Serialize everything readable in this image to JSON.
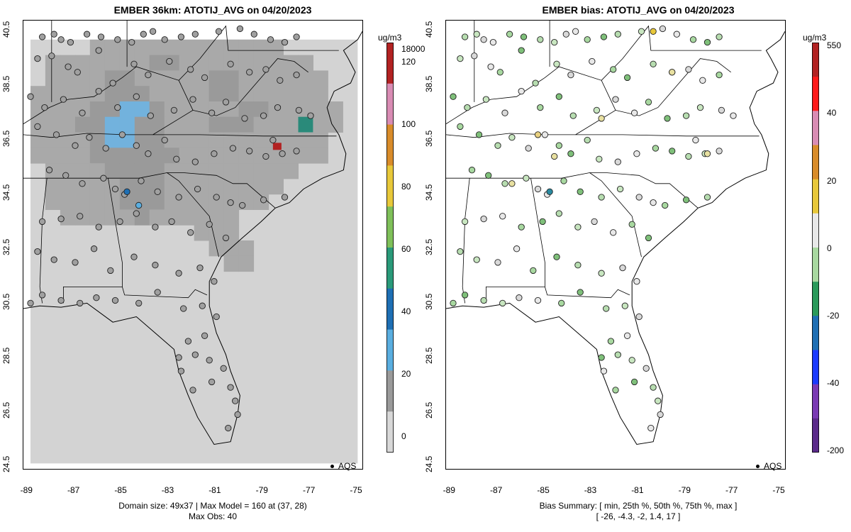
{
  "left_panel": {
    "title": "EMBER 36km: ATOTIJ_AVG on 04/20/2023",
    "footer_line1": "Domain size: 49x37 | Max Model = 160 at (37, 28)",
    "footer_line2": "Max Obs: 40",
    "colorbar": {
      "unit": "ug/m3",
      "labels": [
        "18000",
        "120",
        "100",
        "80",
        "60",
        "40",
        "20",
        "0"
      ],
      "colors": [
        "#b22222",
        "#d98cb4",
        "#d98c2a",
        "#e8c83a",
        "#7fc05a",
        "#2a9a7a",
        "#1e6fb4",
        "#5aaee0",
        "#9a9a9a",
        "#d8d8d8"
      ]
    },
    "legend_label": "AQS"
  },
  "right_panel": {
    "title": "EMBER bias: ATOTIJ_AVG on 04/20/2023",
    "footer_line1": "Bias Summary: [ min, 25th %, 50th %, 75th %, max ]",
    "footer_line2": "[ -26,   -4.3,   -2,   1.4,   17 ]",
    "colorbar": {
      "unit": "ug/m3",
      "labels": [
        "550",
        "40",
        "20",
        "0",
        "-20",
        "-40",
        "-200"
      ],
      "colors": [
        "#b22222",
        "#ff1a1a",
        "#d98cb4",
        "#d98c2a",
        "#e8c83a",
        "#e8e8e8",
        "#a8d8a0",
        "#2a9a5a",
        "#1e6fb4",
        "#1a3aff",
        "#7a3ab4",
        "#5a2a8a"
      ]
    },
    "legend_label": "AQS"
  },
  "axes": {
    "x_ticks": [
      "-89",
      "-87",
      "-85",
      "-83",
      "-81",
      "-79",
      "-77",
      "-75"
    ],
    "y_ticks": [
      "24.5",
      "26.5",
      "28.5",
      "30.5",
      "32.5",
      "34.5",
      "36.5",
      "38.5",
      "40.5"
    ],
    "lon_range": [
      -89.2,
      -74.8
    ],
    "lat_range": [
      24.3,
      40.8
    ]
  },
  "stations": [
    [
      -88.4,
      40.2
    ],
    [
      -87.9,
      40.3
    ],
    [
      -87.6,
      40.1
    ],
    [
      -87.2,
      40.0
    ],
    [
      -86.5,
      40.3
    ],
    [
      -85.9,
      40.2
    ],
    [
      -85.2,
      40.1
    ],
    [
      -84.6,
      40.0
    ],
    [
      -84.1,
      40.3
    ],
    [
      -83.7,
      40.4
    ],
    [
      -83.2,
      40.1
    ],
    [
      -82.5,
      40.2
    ],
    [
      -81.9,
      40.3
    ],
    [
      -80.9,
      40.4
    ],
    [
      -80.0,
      40.5
    ],
    [
      -79.4,
      40.3
    ],
    [
      -78.7,
      40.1
    ],
    [
      -78.1,
      40.0
    ],
    [
      -77.6,
      40.2
    ],
    [
      -88.6,
      39.4
    ],
    [
      -88.0,
      39.5
    ],
    [
      -87.3,
      39.1
    ],
    [
      -86.9,
      38.9
    ],
    [
      -86.0,
      39.7
    ],
    [
      -85.4,
      38.5
    ],
    [
      -84.5,
      39.2
    ],
    [
      -83.9,
      38.8
    ],
    [
      -83.0,
      39.3
    ],
    [
      -82.1,
      39.0
    ],
    [
      -81.5,
      38.7
    ],
    [
      -80.4,
      39.2
    ],
    [
      -79.6,
      38.9
    ],
    [
      -78.9,
      39.0
    ],
    [
      -78.3,
      38.6
    ],
    [
      -77.6,
      38.8
    ],
    [
      -88.9,
      38.0
    ],
    [
      -88.3,
      37.6
    ],
    [
      -87.5,
      37.9
    ],
    [
      -86.7,
      37.4
    ],
    [
      -86.0,
      38.2
    ],
    [
      -85.2,
      37.6
    ],
    [
      -84.4,
      38.0
    ],
    [
      -83.8,
      37.3
    ],
    [
      -82.8,
      37.5
    ],
    [
      -82.0,
      37.9
    ],
    [
      -81.2,
      37.4
    ],
    [
      -80.6,
      37.8
    ],
    [
      -79.8,
      37.2
    ],
    [
      -79.0,
      37.3
    ],
    [
      -78.4,
      37.6
    ],
    [
      -77.5,
      37.5
    ],
    [
      -77.0,
      37.3
    ],
    [
      -88.6,
      36.9
    ],
    [
      -87.8,
      36.6
    ],
    [
      -87.0,
      36.2
    ],
    [
      -86.4,
      36.5
    ],
    [
      -85.7,
      36.1
    ],
    [
      -85.0,
      36.6
    ],
    [
      -84.4,
      36.2
    ],
    [
      -83.9,
      35.9
    ],
    [
      -83.2,
      36.4
    ],
    [
      -82.7,
      35.7
    ],
    [
      -81.9,
      35.6
    ],
    [
      -81.1,
      35.9
    ],
    [
      -80.3,
      36.1
    ],
    [
      -79.6,
      36.0
    ],
    [
      -78.9,
      35.8
    ],
    [
      -78.2,
      35.9
    ],
    [
      -77.6,
      36.0
    ],
    [
      -78.6,
      36.4
    ],
    [
      -88.1,
      35.3
    ],
    [
      -87.4,
      35.1
    ],
    [
      -86.7,
      34.8
    ],
    [
      -85.8,
      35.0
    ],
    [
      -85.3,
      34.6
    ],
    [
      -84.9,
      34.4
    ],
    [
      -84.2,
      34.9
    ],
    [
      -83.5,
      34.5
    ],
    [
      -82.6,
      34.3
    ],
    [
      -81.8,
      34.6
    ],
    [
      -81.0,
      34.3
    ],
    [
      -80.4,
      34.1
    ],
    [
      -79.9,
      34.0
    ],
    [
      -79.0,
      34.2
    ],
    [
      -78.1,
      34.3
    ],
    [
      -88.4,
      33.4
    ],
    [
      -87.6,
      33.5
    ],
    [
      -86.8,
      33.6
    ],
    [
      -86.0,
      33.2
    ],
    [
      -85.1,
      33.4
    ],
    [
      -84.4,
      33.7
    ],
    [
      -83.6,
      33.2
    ],
    [
      -82.9,
      33.4
    ],
    [
      -82.1,
      33.0
    ],
    [
      -81.3,
      33.3
    ],
    [
      -80.6,
      32.8
    ],
    [
      -88.6,
      32.3
    ],
    [
      -87.9,
      32.0
    ],
    [
      -87.0,
      31.9
    ],
    [
      -86.2,
      32.4
    ],
    [
      -85.5,
      31.6
    ],
    [
      -84.5,
      32.1
    ],
    [
      -83.6,
      31.8
    ],
    [
      -82.6,
      31.5
    ],
    [
      -81.7,
      31.7
    ],
    [
      -81.1,
      31.2
    ],
    [
      -88.9,
      30.4
    ],
    [
      -88.4,
      30.7
    ],
    [
      -87.6,
      30.5
    ],
    [
      -86.8,
      30.4
    ],
    [
      -86.1,
      30.6
    ],
    [
      -85.3,
      30.5
    ],
    [
      -84.3,
      30.4
    ],
    [
      -83.5,
      30.8
    ],
    [
      -82.4,
      30.2
    ],
    [
      -81.6,
      30.3
    ],
    [
      -81.0,
      29.9
    ],
    [
      -81.5,
      29.2
    ],
    [
      -82.2,
      29.0
    ],
    [
      -82.6,
      28.4
    ],
    [
      -81.9,
      28.5
    ],
    [
      -81.3,
      28.3
    ],
    [
      -80.7,
      28.0
    ],
    [
      -82.5,
      27.9
    ],
    [
      -82.0,
      27.2
    ],
    [
      -81.2,
      27.5
    ],
    [
      -80.4,
      27.3
    ],
    [
      -80.2,
      26.8
    ],
    [
      -80.1,
      26.3
    ],
    [
      -80.5,
      25.8
    ]
  ],
  "model_grid": [
    [
      0,
      0,
      0,
      0,
      1,
      1,
      1,
      1,
      1,
      1,
      1,
      1,
      1,
      1,
      1,
      1,
      1,
      0,
      0,
      0,
      0,
      0
    ],
    [
      0,
      1,
      1,
      1,
      1,
      1,
      1,
      1,
      2,
      2,
      1,
      1,
      1,
      1,
      1,
      1,
      1,
      1,
      1,
      0,
      0,
      0
    ],
    [
      0,
      1,
      1,
      1,
      1,
      2,
      2,
      1,
      1,
      1,
      1,
      1,
      2,
      2,
      1,
      1,
      1,
      1,
      1,
      1,
      0,
      0
    ],
    [
      1,
      1,
      1,
      1,
      1,
      2,
      2,
      2,
      1,
      1,
      1,
      1,
      2,
      2,
      1,
      1,
      1,
      1,
      1,
      1,
      0,
      0
    ],
    [
      1,
      1,
      1,
      1,
      2,
      2,
      3,
      3,
      2,
      1,
      1,
      1,
      1,
      1,
      2,
      2,
      1,
      1,
      1,
      1,
      1,
      0
    ],
    [
      1,
      1,
      1,
      2,
      2,
      3,
      3,
      2,
      2,
      1,
      1,
      1,
      2,
      2,
      2,
      1,
      1,
      1,
      4,
      1,
      1,
      0
    ],
    [
      1,
      1,
      1,
      1,
      2,
      3,
      3,
      2,
      2,
      1,
      1,
      1,
      1,
      1,
      1,
      1,
      1,
      1,
      1,
      1,
      0,
      0
    ],
    [
      1,
      1,
      1,
      1,
      2,
      2,
      2,
      2,
      2,
      2,
      1,
      1,
      1,
      1,
      1,
      1,
      1,
      1,
      1,
      1,
      0,
      0
    ],
    [
      0,
      1,
      1,
      1,
      1,
      2,
      2,
      2,
      2,
      1,
      1,
      1,
      1,
      1,
      1,
      1,
      1,
      1,
      0,
      0,
      0,
      0
    ],
    [
      0,
      1,
      1,
      1,
      1,
      1,
      2,
      2,
      2,
      1,
      1,
      1,
      1,
      1,
      1,
      1,
      1,
      0,
      0,
      0,
      0,
      0
    ],
    [
      0,
      1,
      1,
      1,
      1,
      1,
      2,
      2,
      2,
      1,
      1,
      1,
      1,
      1,
      1,
      1,
      0,
      0,
      0,
      0,
      0,
      0
    ],
    [
      0,
      0,
      1,
      1,
      1,
      1,
      1,
      2,
      1,
      1,
      1,
      1,
      1,
      1,
      0,
      0,
      0,
      0,
      0,
      0,
      0,
      0
    ],
    [
      0,
      0,
      0,
      0,
      0,
      0,
      0,
      0,
      0,
      0,
      0,
      1,
      1,
      1,
      0,
      0,
      0,
      0,
      0,
      0,
      0,
      0
    ],
    [
      0,
      0,
      0,
      0,
      0,
      0,
      0,
      0,
      0,
      0,
      0,
      0,
      1,
      1,
      1,
      0,
      0,
      0,
      0,
      0,
      0,
      0
    ],
    [
      0,
      0,
      0,
      0,
      0,
      0,
      0,
      0,
      0,
      0,
      0,
      0,
      0,
      1,
      1,
      0,
      0,
      0,
      0,
      0,
      0,
      0
    ],
    [
      0,
      0,
      0,
      0,
      0,
      0,
      0,
      0,
      0,
      0,
      0,
      0,
      0,
      0,
      0,
      0,
      0,
      0,
      0,
      0,
      0,
      0
    ]
  ]
}
